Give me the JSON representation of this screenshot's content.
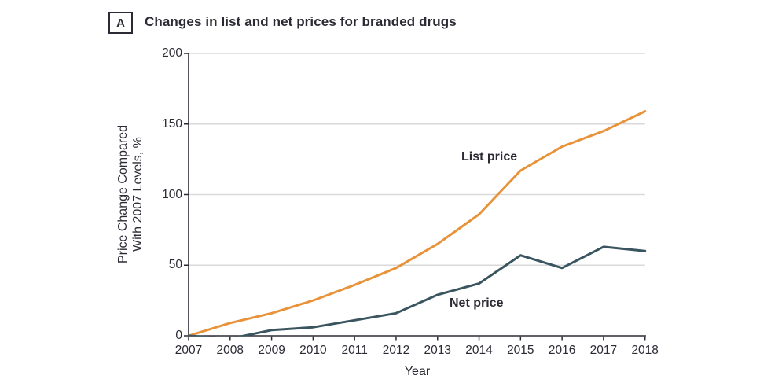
{
  "figure": {
    "panel_label": "A",
    "title": "Changes in list and net prices for branded drugs"
  },
  "chart_data": {
    "type": "line",
    "title": "Changes in list and net prices for branded drugs",
    "x": [
      2007,
      2008,
      2009,
      2010,
      2011,
      2012,
      2013,
      2014,
      2015,
      2016,
      2017,
      2018
    ],
    "series": [
      {
        "name": "List price",
        "color": "#E8923A",
        "values": [
          0,
          9,
          16,
          25,
          36,
          48,
          65,
          86,
          117,
          134,
          145,
          159
        ]
      },
      {
        "name": "Net price",
        "color": "#3A555F",
        "values": [
          0,
          -2,
          4,
          6,
          11,
          16,
          29,
          37,
          57,
          48,
          63,
          60
        ]
      }
    ],
    "xlabel": "Year",
    "ylabel": "Price Change Compared With 2007 Levels, %",
    "ylabel_lines": [
      "Price Change Compared",
      "With 2007 Levels, %"
    ],
    "yticks": [
      0,
      50,
      100,
      150,
      200
    ],
    "ylim": [
      0,
      200
    ],
    "grid": "horizontal-gridlines",
    "legend": "inline-series-labels",
    "colors": {
      "grid": "#D9D9D9",
      "axis": "#2B2B35",
      "text": "#2B2B35",
      "background": "#FFFFFF"
    }
  }
}
